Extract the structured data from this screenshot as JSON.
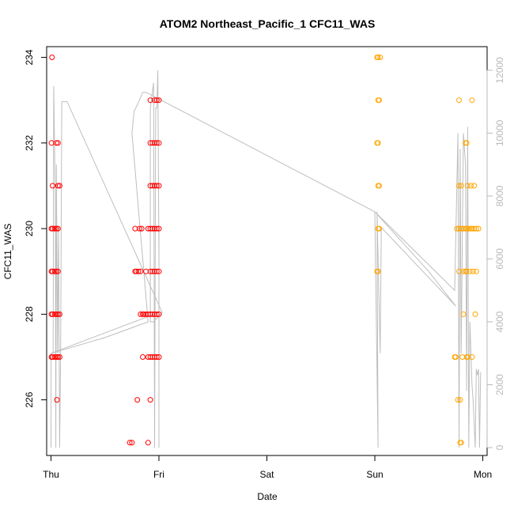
{
  "chart_data": {
    "type": "scatter",
    "title": "ATOM2 Northeast_Pacific_1 CFC11_WAS",
    "xlabel": "Date",
    "ylabel": "CFC11_WAS",
    "x_ticks": [
      "Thu",
      "Fri",
      "Sat",
      "Sun",
      "Mon"
    ],
    "x_tick_positions": [
      0,
      1,
      2,
      3,
      4
    ],
    "xlim": [
      -0.04,
      4.04
    ],
    "y_ticks": [
      226,
      228,
      230,
      232,
      234
    ],
    "ylim": [
      224.7,
      234.25
    ],
    "y2_ticks": [
      0,
      2000,
      4000,
      6000,
      8000,
      10000,
      12000
    ],
    "y2lim": [
      -250,
      12750
    ],
    "grid": false,
    "colors": {
      "red_series": "#ff0000",
      "orange_series": "#ffa500",
      "line": "#bebebe"
    },
    "series": [
      {
        "marker": "circle-open",
        "color": "#ff0000",
        "points": [
          [
            0.005,
            227
          ],
          [
            0.005,
            228
          ],
          [
            0.005,
            229
          ],
          [
            0.005,
            230
          ],
          [
            0.005,
            232
          ],
          [
            0.01,
            234
          ],
          [
            0.015,
            227
          ],
          [
            0.015,
            228
          ],
          [
            0.015,
            229
          ],
          [
            0.015,
            230
          ],
          [
            0.015,
            231
          ],
          [
            0.035,
            227
          ],
          [
            0.035,
            228
          ],
          [
            0.035,
            229
          ],
          [
            0.035,
            230
          ],
          [
            0.05,
            227
          ],
          [
            0.05,
            228
          ],
          [
            0.05,
            229
          ],
          [
            0.05,
            230
          ],
          [
            0.05,
            232
          ],
          [
            0.055,
            226
          ],
          [
            0.065,
            227
          ],
          [
            0.065,
            228
          ],
          [
            0.065,
            229
          ],
          [
            0.065,
            230
          ],
          [
            0.065,
            231
          ],
          [
            0.065,
            232
          ],
          [
            0.08,
            227
          ],
          [
            0.08,
            228
          ],
          [
            0.08,
            231
          ],
          [
            0.73,
            225
          ],
          [
            0.75,
            225
          ],
          [
            0.78,
            230
          ],
          [
            0.78,
            229
          ],
          [
            0.79,
            229
          ],
          [
            0.8,
            226
          ],
          [
            0.81,
            229
          ],
          [
            0.82,
            230
          ],
          [
            0.83,
            228
          ],
          [
            0.83,
            229
          ],
          [
            0.84,
            230
          ],
          [
            0.85,
            227
          ],
          [
            0.85,
            228
          ],
          [
            0.86,
            228
          ],
          [
            0.88,
            228
          ],
          [
            0.88,
            229
          ],
          [
            0.9,
            225
          ],
          [
            0.9,
            227
          ],
          [
            0.9,
            228
          ],
          [
            0.9,
            230
          ],
          [
            0.92,
            226
          ],
          [
            0.92,
            227
          ],
          [
            0.92,
            228
          ],
          [
            0.92,
            229
          ],
          [
            0.92,
            230
          ],
          [
            0.92,
            231
          ],
          [
            0.92,
            232
          ],
          [
            0.92,
            233
          ],
          [
            0.94,
            227
          ],
          [
            0.94,
            228
          ],
          [
            0.94,
            229
          ],
          [
            0.94,
            230
          ],
          [
            0.94,
            231
          ],
          [
            0.94,
            232
          ],
          [
            0.96,
            227
          ],
          [
            0.96,
            228
          ],
          [
            0.96,
            229
          ],
          [
            0.96,
            230
          ],
          [
            0.96,
            231
          ],
          [
            0.96,
            232
          ],
          [
            0.96,
            233
          ],
          [
            0.98,
            227
          ],
          [
            0.98,
            228
          ],
          [
            0.98,
            229
          ],
          [
            0.98,
            230
          ],
          [
            0.98,
            231
          ],
          [
            0.98,
            232
          ],
          [
            0.98,
            233
          ],
          [
            1.0,
            227
          ],
          [
            1.0,
            228
          ],
          [
            1.0,
            229
          ],
          [
            1.0,
            230
          ],
          [
            1.0,
            231
          ],
          [
            1.0,
            232
          ],
          [
            1.0,
            233
          ]
        ]
      },
      {
        "marker": "circle-open",
        "color": "#ffa500",
        "points": [
          [
            3.02,
            229
          ],
          [
            3.02,
            232
          ],
          [
            3.02,
            234
          ],
          [
            3.03,
            229
          ],
          [
            3.03,
            230
          ],
          [
            3.03,
            231
          ],
          [
            3.03,
            232
          ],
          [
            3.03,
            233
          ],
          [
            3.03,
            234
          ],
          [
            3.04,
            230
          ],
          [
            3.04,
            231
          ],
          [
            3.04,
            233
          ],
          [
            3.05,
            234
          ],
          [
            3.74,
            227
          ],
          [
            3.75,
            227
          ],
          [
            3.76,
            230
          ],
          [
            3.77,
            226
          ],
          [
            3.78,
            229
          ],
          [
            3.78,
            230
          ],
          [
            3.78,
            231
          ],
          [
            3.78,
            233
          ],
          [
            3.79,
            226
          ],
          [
            3.79,
            225
          ],
          [
            3.8,
            225
          ],
          [
            3.8,
            230
          ],
          [
            3.8,
            231
          ],
          [
            3.81,
            227
          ],
          [
            3.82,
            228
          ],
          [
            3.82,
            229
          ],
          [
            3.82,
            230
          ],
          [
            3.84,
            229
          ],
          [
            3.84,
            230
          ],
          [
            3.84,
            232
          ],
          [
            3.85,
            227
          ],
          [
            3.85,
            229
          ],
          [
            3.85,
            230
          ],
          [
            3.85,
            232
          ],
          [
            3.86,
            227
          ],
          [
            3.86,
            231
          ],
          [
            3.87,
            230
          ],
          [
            3.88,
            229
          ],
          [
            3.89,
            230
          ],
          [
            3.89,
            231
          ],
          [
            3.9,
            227
          ],
          [
            3.9,
            230
          ],
          [
            3.9,
            233
          ],
          [
            3.91,
            229
          ],
          [
            3.92,
            230
          ],
          [
            3.92,
            231
          ],
          [
            3.93,
            228
          ],
          [
            3.94,
            229
          ],
          [
            3.94,
            230
          ],
          [
            3.96,
            230
          ]
        ]
      }
    ],
    "line_series": {
      "color": "#bebebe",
      "axis": "right",
      "points": [
        [
          0.0,
          0
        ],
        [
          0.0,
          3000
        ],
        [
          0.02,
          3000
        ],
        [
          0.025,
          11500
        ],
        [
          0.04,
          8000
        ],
        [
          0.045,
          0
        ],
        [
          0.05,
          9000
        ],
        [
          0.06,
          3000
        ],
        [
          0.07,
          7000
        ],
        [
          0.08,
          0
        ],
        [
          0.09,
          3000
        ],
        [
          0.1,
          11000
        ],
        [
          0.15,
          11000
        ],
        [
          1.03,
          4300
        ],
        [
          0.95,
          4000
        ],
        [
          0.92,
          4000
        ],
        [
          0.92,
          10800
        ],
        [
          0.95,
          11600
        ],
        [
          0.96,
          0
        ],
        [
          0.97,
          10800
        ],
        [
          0.98,
          10800
        ],
        [
          0.99,
          12000
        ],
        [
          1.0,
          6000
        ],
        [
          1.0,
          0
        ],
        [
          1.0,
          7000
        ],
        [
          1.0,
          4300
        ],
        [
          0.0,
          3000
        ],
        [
          0.5,
          3500
        ],
        [
          0.9,
          4000
        ],
        [
          0.75,
          10000
        ],
        [
          0.77,
          10700
        ],
        [
          0.8,
          10900
        ],
        [
          0.85,
          11300
        ],
        [
          0.88,
          11300
        ],
        [
          3.0,
          7500
        ],
        [
          3.03,
          0
        ],
        [
          3.02,
          7500
        ],
        [
          3.05,
          3000
        ],
        [
          3.06,
          7000
        ],
        [
          3.75,
          4500
        ],
        [
          3.5,
          5600
        ],
        [
          3.0,
          7500
        ],
        [
          3.74,
          5000
        ],
        [
          3.77,
          10000
        ],
        [
          3.78,
          0
        ],
        [
          3.79,
          9500
        ],
        [
          3.8,
          3000
        ],
        [
          3.82,
          10000
        ],
        [
          3.84,
          9000
        ],
        [
          3.85,
          1800
        ],
        [
          3.86,
          10200
        ],
        [
          3.87,
          0
        ],
        [
          3.88,
          4000
        ],
        [
          3.9,
          2000
        ],
        [
          3.91,
          1500
        ],
        [
          3.93,
          0
        ],
        [
          3.94,
          2500
        ],
        [
          3.95,
          2300
        ],
        [
          3.96,
          2500
        ],
        [
          3.97,
          0
        ],
        [
          3.98,
          2400
        ]
      ]
    }
  }
}
